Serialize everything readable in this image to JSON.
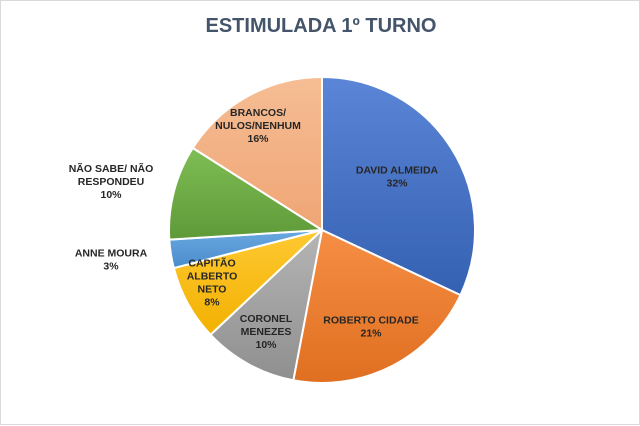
{
  "chart_data": {
    "type": "pie",
    "title": "ESTIMULADA 1º TURNO",
    "legend": "none",
    "slices": [
      {
        "name_lines": [
          "DAVID ALMEIDA"
        ],
        "value": 32,
        "value_label": "32%",
        "color": "#4472c4"
      },
      {
        "name_lines": [
          "ROBERTO CIDADE"
        ],
        "value": 21,
        "value_label": "21%",
        "color": "#ed7d31"
      },
      {
        "name_lines": [
          "CORONEL",
          "MENEZES"
        ],
        "value": 10,
        "value_label": "10%",
        "color": "#a5a5a5"
      },
      {
        "name_lines": [
          "CAPITÃO",
          "ALBERTO",
          "NETO"
        ],
        "value": 8,
        "value_label": "8%",
        "color": "#ffc000"
      },
      {
        "name_lines": [
          "ANNE MOURA"
        ],
        "value": 3,
        "value_label": "3%",
        "color": "#5b9bd5"
      },
      {
        "name_lines": [
          "NÃO SABE/ NÃO",
          "RESPONDEU"
        ],
        "value": 10,
        "value_label": "10%",
        "color": "#70ad47"
      },
      {
        "name_lines": [
          "BRANCOS/",
          "NULOS/NENHUM"
        ],
        "value": 16,
        "value_label": "16%",
        "color": "#f4b183"
      }
    ]
  }
}
